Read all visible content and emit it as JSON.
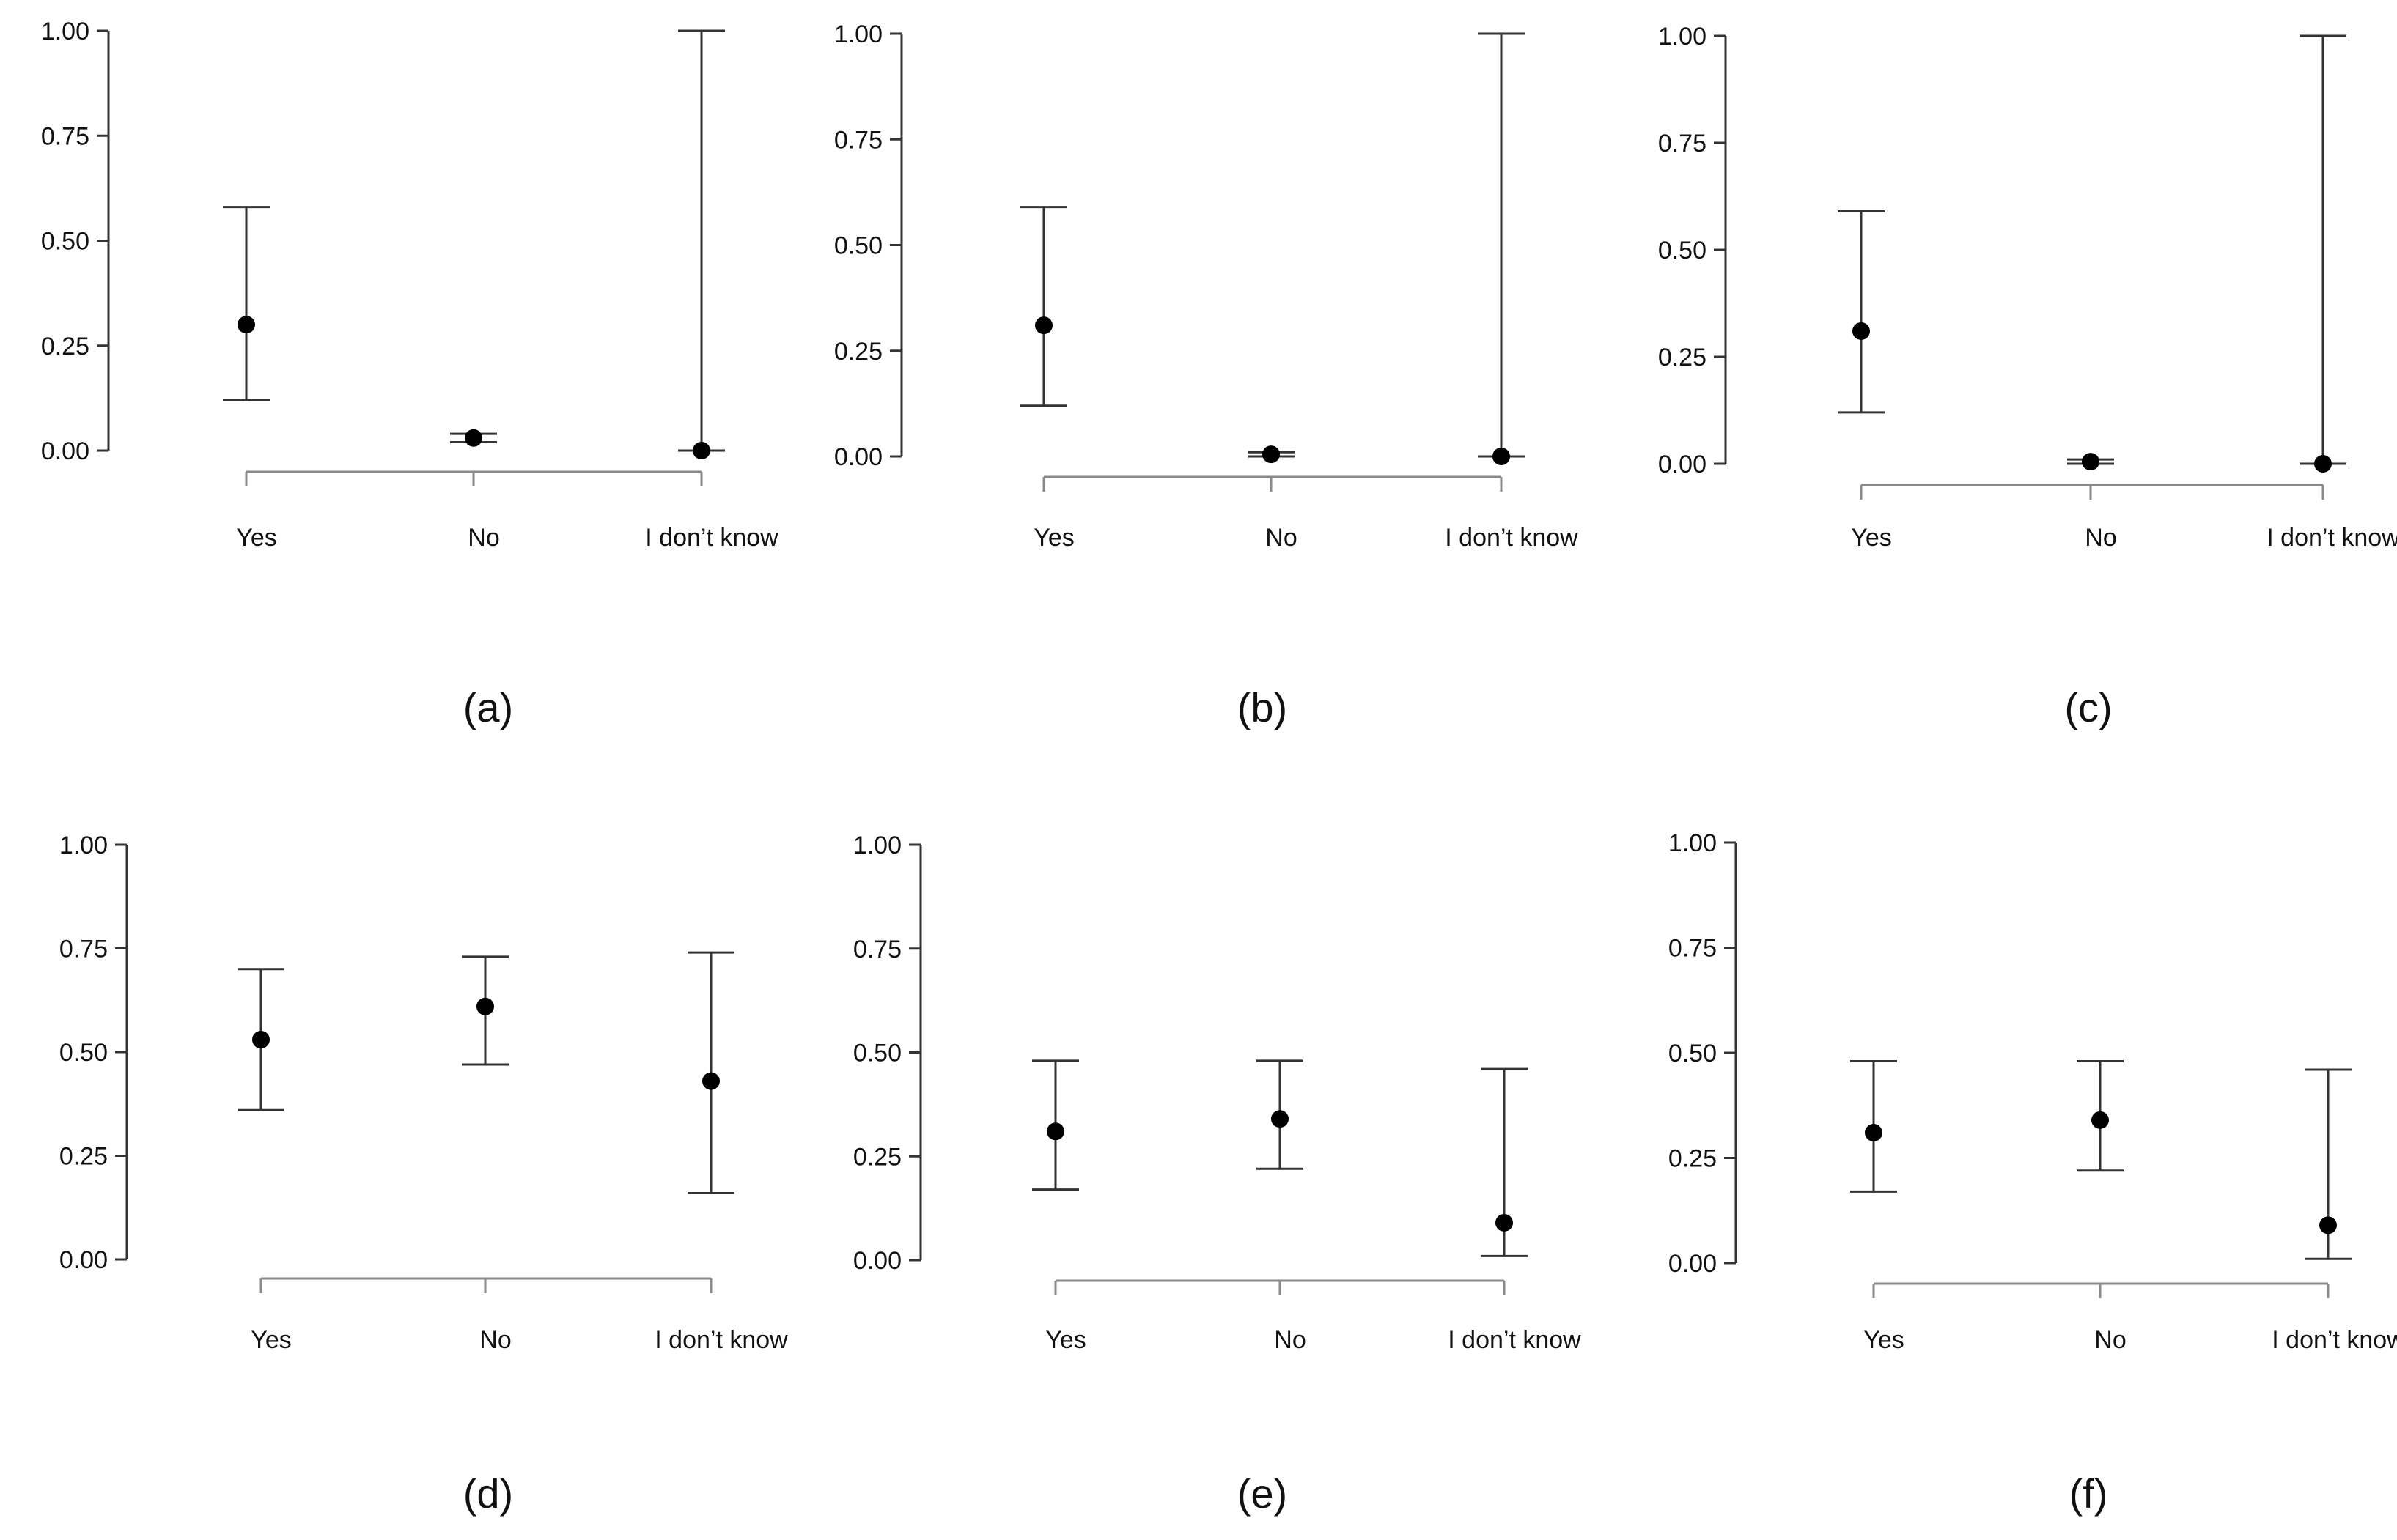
{
  "figure": {
    "colors": {
      "axis": "#333333",
      "baseline": "#8a8a8a",
      "point": "#000000",
      "text": "#111111"
    }
  },
  "chart_data": [
    {
      "type": "scatter",
      "title": "",
      "panel_label": "(a)",
      "xlabel": "",
      "ylabel": "",
      "categories": [
        "Yes",
        "No",
        "I don’t know"
      ],
      "values": [
        0.3,
        0.03,
        0.0
      ],
      "lower": [
        0.12,
        0.02,
        0.0
      ],
      "upper": [
        0.58,
        0.04,
        1.0
      ],
      "ylim": [
        0,
        1
      ],
      "yticks": [
        "0.00",
        "0.25",
        "0.50",
        "0.75",
        "1.00"
      ],
      "grid": false
    },
    {
      "type": "scatter",
      "title": "",
      "panel_label": "(b)",
      "xlabel": "",
      "ylabel": "",
      "categories": [
        "Yes",
        "No",
        "I don’t know"
      ],
      "values": [
        0.31,
        0.005,
        0.0
      ],
      "lower": [
        0.12,
        0.0,
        0.0
      ],
      "upper": [
        0.59,
        0.01,
        1.0
      ],
      "ylim": [
        0,
        1
      ],
      "yticks": [
        "0.00",
        "0.25",
        "0.50",
        "0.75",
        "1.00"
      ],
      "grid": false
    },
    {
      "type": "scatter",
      "title": "",
      "panel_label": "(c)",
      "xlabel": "",
      "ylabel": "",
      "categories": [
        "Yes",
        "No",
        "I don’t know"
      ],
      "values": [
        0.31,
        0.005,
        0.0
      ],
      "lower": [
        0.12,
        0.0,
        0.0
      ],
      "upper": [
        0.59,
        0.01,
        1.0
      ],
      "ylim": [
        0,
        1
      ],
      "yticks": [
        "0.00",
        "0.25",
        "0.50",
        "0.75",
        "1.00"
      ],
      "grid": false
    },
    {
      "type": "scatter",
      "title": "",
      "panel_label": "(d)",
      "xlabel": "",
      "ylabel": "",
      "categories": [
        "Yes",
        "No",
        "I don’t know"
      ],
      "values": [
        0.53,
        0.61,
        0.43
      ],
      "lower": [
        0.36,
        0.47,
        0.16
      ],
      "upper": [
        0.7,
        0.73,
        0.74
      ],
      "ylim": [
        0,
        1
      ],
      "yticks": [
        "0.00",
        "0.25",
        "0.50",
        "0.75",
        "1.00"
      ],
      "grid": false
    },
    {
      "type": "scatter",
      "title": "",
      "panel_label": "(e)",
      "xlabel": "",
      "ylabel": "",
      "categories": [
        "Yes",
        "No",
        "I don’t know"
      ],
      "values": [
        0.31,
        0.34,
        0.09
      ],
      "lower": [
        0.17,
        0.22,
        0.01
      ],
      "upper": [
        0.48,
        0.48,
        0.46
      ],
      "ylim": [
        0,
        1
      ],
      "yticks": [
        "0.00",
        "0.25",
        "0.50",
        "0.75",
        "1.00"
      ],
      "grid": false
    },
    {
      "type": "scatter",
      "title": "",
      "panel_label": "(f)",
      "xlabel": "",
      "ylabel": "",
      "categories": [
        "Yes",
        "No",
        "I don’t know"
      ],
      "values": [
        0.31,
        0.34,
        0.09
      ],
      "lower": [
        0.17,
        0.22,
        0.01
      ],
      "upper": [
        0.48,
        0.48,
        0.46
      ],
      "ylim": [
        0,
        1
      ],
      "yticks": [
        "0.00",
        "0.25",
        "0.50",
        "0.75",
        "1.00"
      ],
      "grid": false
    }
  ]
}
